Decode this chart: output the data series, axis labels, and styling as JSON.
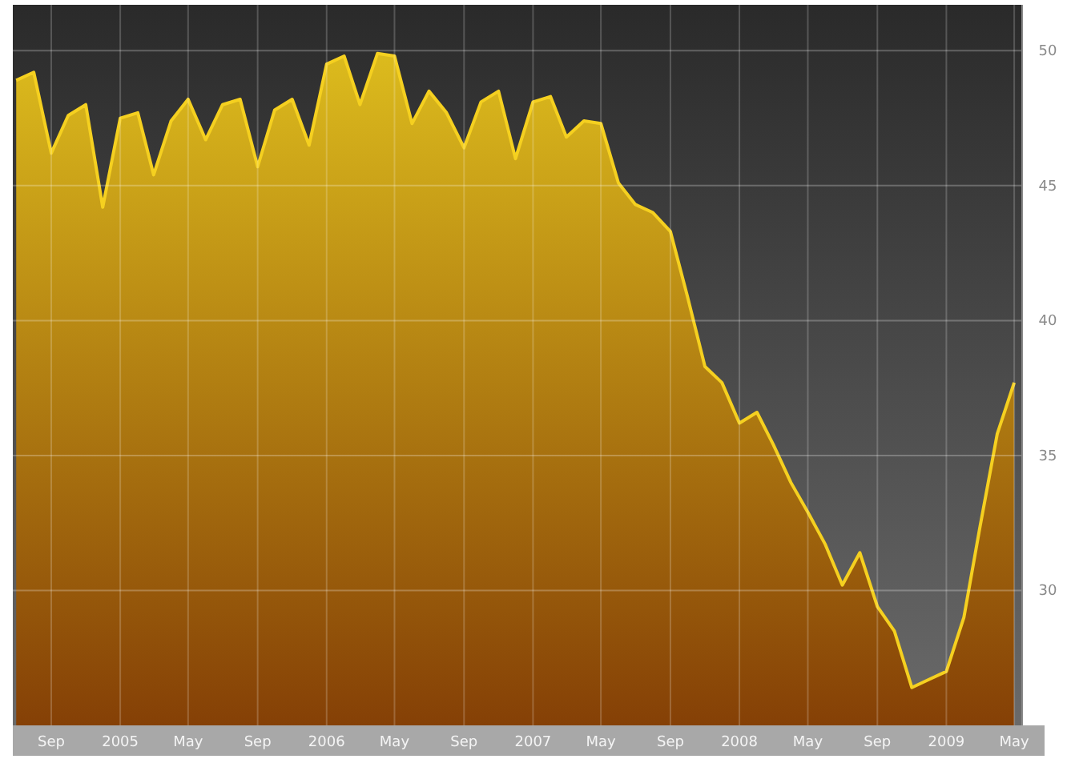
{
  "chart_data": {
    "type": "area",
    "x": [
      "2004-07",
      "2004-08",
      "2004-09",
      "2004-10",
      "2004-11",
      "2004-12",
      "2005-01",
      "2005-02",
      "2005-03",
      "2005-04",
      "2005-05",
      "2005-06",
      "2005-07",
      "2005-08",
      "2005-09",
      "2005-10",
      "2005-11",
      "2005-12",
      "2006-01",
      "2006-02",
      "2006-03",
      "2006-04",
      "2006-05",
      "2006-06",
      "2006-07",
      "2006-08",
      "2006-09",
      "2006-10",
      "2006-11",
      "2006-12",
      "2007-01",
      "2007-02",
      "2007-03",
      "2007-04",
      "2007-05",
      "2007-06",
      "2007-07",
      "2007-08",
      "2007-09",
      "2007-10",
      "2007-11",
      "2007-12",
      "2008-01",
      "2008-02",
      "2008-03",
      "2008-04",
      "2008-05",
      "2008-06",
      "2008-07",
      "2008-08",
      "2008-09",
      "2008-10",
      "2008-11",
      "2008-12",
      "2009-01",
      "2009-02",
      "2009-03",
      "2009-04",
      "2009-05"
    ],
    "series": [
      {
        "color": "#f5d020",
        "values": [
          48.9,
          49.2,
          46.2,
          47.6,
          48.0,
          44.2,
          47.5,
          47.7,
          45.4,
          47.4,
          48.2,
          46.7,
          48.0,
          48.2,
          45.7,
          47.8,
          48.2,
          46.5,
          49.5,
          49.8,
          48.0,
          49.9,
          49.8,
          47.3,
          48.5,
          47.7,
          46.4,
          48.1,
          48.5,
          46.0,
          48.1,
          48.3,
          46.8,
          47.4,
          47.3,
          45.1,
          44.3,
          44.0,
          43.3,
          40.9,
          38.3,
          37.7,
          36.2,
          36.6,
          35.4,
          34.0,
          32.9,
          31.7,
          30.2,
          31.4,
          29.4,
          28.5,
          26.4,
          26.7,
          27.0,
          29.0,
          32.3,
          35.8,
          37.7
        ]
      }
    ],
    "xlim": [
      "2004-06-25",
      "2009-05-15"
    ],
    "ylim": [
      25,
      51.7
    ],
    "yticks": [
      30,
      35,
      40,
      45,
      50
    ],
    "xticks": [
      {
        "value": "2004-09",
        "label": "Sep"
      },
      {
        "value": "2005-01",
        "label": "2005"
      },
      {
        "value": "2005-05",
        "label": "May"
      },
      {
        "value": "2005-09",
        "label": "Sep"
      },
      {
        "value": "2006-01",
        "label": "2006"
      },
      {
        "value": "2006-05",
        "label": "May"
      },
      {
        "value": "2006-09",
        "label": "Sep"
      },
      {
        "value": "2007-01",
        "label": "2007"
      },
      {
        "value": "2007-05",
        "label": "May"
      },
      {
        "value": "2007-09",
        "label": "Sep"
      },
      {
        "value": "2008-01",
        "label": "2008"
      },
      {
        "value": "2008-05",
        "label": "May"
      },
      {
        "value": "2008-09",
        "label": "Sep"
      },
      {
        "value": "2009-01",
        "label": "2009"
      },
      {
        "value": "2009-05",
        "label": "May"
      }
    ],
    "grid": true
  }
}
